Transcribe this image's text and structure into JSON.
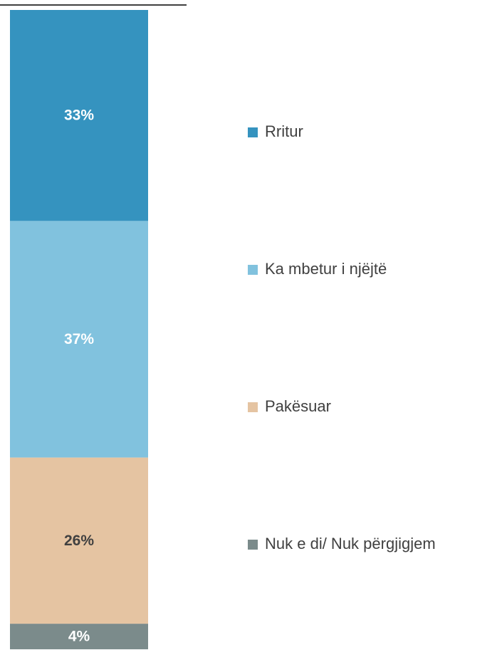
{
  "chart_data": {
    "type": "stacked_bar",
    "ylim": [
      0,
      100
    ],
    "series": [
      {
        "name": "Rritur",
        "color": "#3593bf",
        "label_color": "#ffffff",
        "values": [
          33
        ],
        "value_labels": [
          "33%"
        ]
      },
      {
        "name": "Ka mbetur i njëjtë",
        "color": "#81c2de",
        "label_color": "#ffffff",
        "values": [
          37
        ],
        "value_labels": [
          "37%"
        ]
      },
      {
        "name": "Pakësuar",
        "color": "#e5c4a2",
        "label_color": "#404040",
        "values": [
          26
        ],
        "value_labels": [
          "26%"
        ]
      },
      {
        "name": "Nuk e di/ Nuk përgjigjem",
        "color": "#7b8b8b",
        "label_color": "#ffffff",
        "values": [
          4
        ],
        "value_labels": [
          "4%"
        ]
      }
    ]
  }
}
